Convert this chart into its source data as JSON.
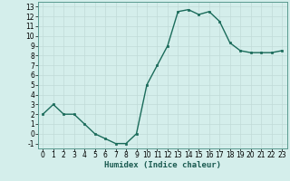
{
  "x": [
    0,
    1,
    2,
    3,
    4,
    5,
    6,
    7,
    8,
    9,
    10,
    11,
    12,
    13,
    14,
    15,
    16,
    17,
    18,
    19,
    20,
    21,
    22,
    23
  ],
  "y": [
    2,
    3,
    2,
    2,
    1,
    0,
    -0.5,
    -1,
    -1,
    0,
    5,
    7,
    9,
    12.5,
    12.7,
    12.2,
    12.5,
    11.5,
    9.3,
    8.5,
    8.3,
    8.3,
    8.3,
    8.5
  ],
  "line_color": "#1a6b5a",
  "marker": "s",
  "marker_size": 2,
  "bg_color": "#d4eeeb",
  "grid_color": "#c0dbd8",
  "xlabel": "Humidex (Indice chaleur)",
  "xlim": [
    -0.5,
    23.5
  ],
  "ylim": [
    -1.5,
    13.5
  ],
  "yticks": [
    -1,
    0,
    1,
    2,
    3,
    4,
    5,
    6,
    7,
    8,
    9,
    10,
    11,
    12,
    13
  ],
  "xticks": [
    0,
    1,
    2,
    3,
    4,
    5,
    6,
    7,
    8,
    9,
    10,
    11,
    12,
    13,
    14,
    15,
    16,
    17,
    18,
    19,
    20,
    21,
    22,
    23
  ],
  "xlabel_fontsize": 6.5,
  "tick_fontsize": 5.5,
  "line_width": 1.0
}
